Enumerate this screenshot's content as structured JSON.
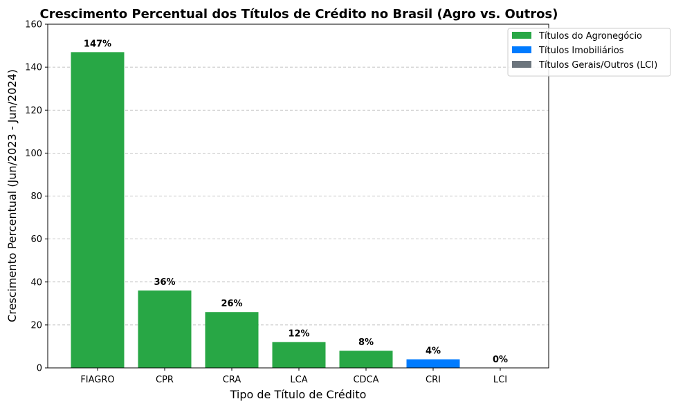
{
  "chart_data": {
    "type": "bar",
    "title": "Crescimento Percentual dos Títulos de Crédito no Brasil (Agro vs. Outros)",
    "xlabel": "Tipo de Título de Crédito",
    "ylabel": "Crescimento Percentual (Jun/2023 - Jun/2024)",
    "categories": [
      "FIAGRO",
      "CPR",
      "CRA",
      "LCA",
      "CDCA",
      "CRI",
      "LCI"
    ],
    "values": [
      147,
      36,
      26,
      12,
      8,
      4,
      0
    ],
    "data_labels": [
      "147%",
      "36%",
      "26%",
      "12%",
      "8%",
      "4%",
      "0%"
    ],
    "groups": [
      "agro",
      "agro",
      "agro",
      "agro",
      "agro",
      "imob",
      "geral"
    ],
    "ylim": [
      0,
      160
    ],
    "yticks": [
      0,
      20,
      40,
      60,
      80,
      100,
      120,
      140,
      160
    ],
    "grid": "y-dashed",
    "legend_position": "top-right-outside",
    "legend": [
      {
        "key": "agro",
        "label": "Títulos do Agronegócio",
        "color": "#28a745"
      },
      {
        "key": "imob",
        "label": "Títulos Imobiliários",
        "color": "#007bff"
      },
      {
        "key": "geral",
        "label": "Títulos Gerais/Outros (LCI)",
        "color": "#6c757d"
      }
    ]
  }
}
